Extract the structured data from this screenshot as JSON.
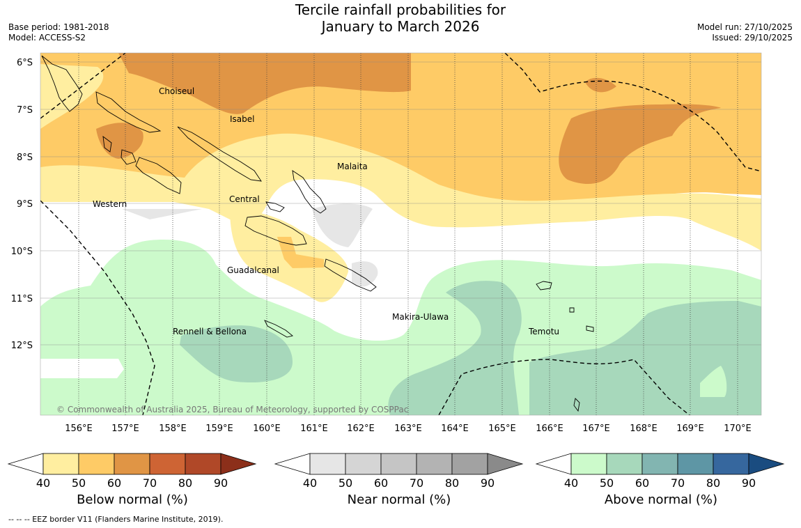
{
  "title": {
    "line1": "Tercile rainfall probabilities for",
    "line2": "January to March 2026"
  },
  "meta_left": {
    "base_period": "Base period: 1981-2018",
    "model": "Model: ACCESS-S2"
  },
  "meta_right": {
    "model_run": "Model run: 27/10/2025",
    "issued": "Issued: 29/10/2025"
  },
  "map": {
    "lat_labels": [
      "6°S",
      "7°S",
      "8°S",
      "9°S",
      "10°S",
      "11°S",
      "12°S"
    ],
    "lon_labels": [
      "156°E",
      "157°E",
      "158°E",
      "159°E",
      "160°E",
      "161°E",
      "162°E",
      "163°E",
      "164°E",
      "165°E",
      "166°E",
      "167°E",
      "168°E",
      "169°E",
      "170°E"
    ],
    "place_labels": [
      {
        "name": "Choiseul"
      },
      {
        "name": "Isabel"
      },
      {
        "name": "Malaita"
      },
      {
        "name": "Western"
      },
      {
        "name": "Central"
      },
      {
        "name": "Guadalcanal"
      },
      {
        "name": "Makira-Ulawa"
      },
      {
        "name": "Rennell & Bellona"
      },
      {
        "name": "Temotu"
      }
    ],
    "copyright": "© Commonwealth of Australia 2025, Bureau of Meteorology, supported by COSPPac"
  },
  "colorbars": [
    {
      "label": "Below normal (%)",
      "ticks": [
        "40",
        "50",
        "60",
        "70",
        "80",
        "90"
      ],
      "colors": [
        "#ffeea0",
        "#fecb66",
        "#e09545",
        "#ce6434",
        "#b04828",
        "#8c2f1a"
      ]
    },
    {
      "label": "Near normal (%)",
      "ticks": [
        "40",
        "50",
        "60",
        "70",
        "80",
        "90"
      ],
      "colors": [
        "#e6e6e6",
        "#d5d5d5",
        "#c5c5c5",
        "#b3b3b3",
        "#a2a2a2",
        "#8a8a8a"
      ]
    },
    {
      "label": "Above normal (%)",
      "ticks": [
        "40",
        "50",
        "60",
        "70",
        "80",
        "90"
      ],
      "colors": [
        "#ccfacb",
        "#a7d8bb",
        "#82b5b1",
        "#5e96a5",
        "#36679e",
        "#1a4c80"
      ]
    }
  ],
  "footnote": "--  --  -- EEZ border V11 (Flanders Marine Institute, 2019)."
}
